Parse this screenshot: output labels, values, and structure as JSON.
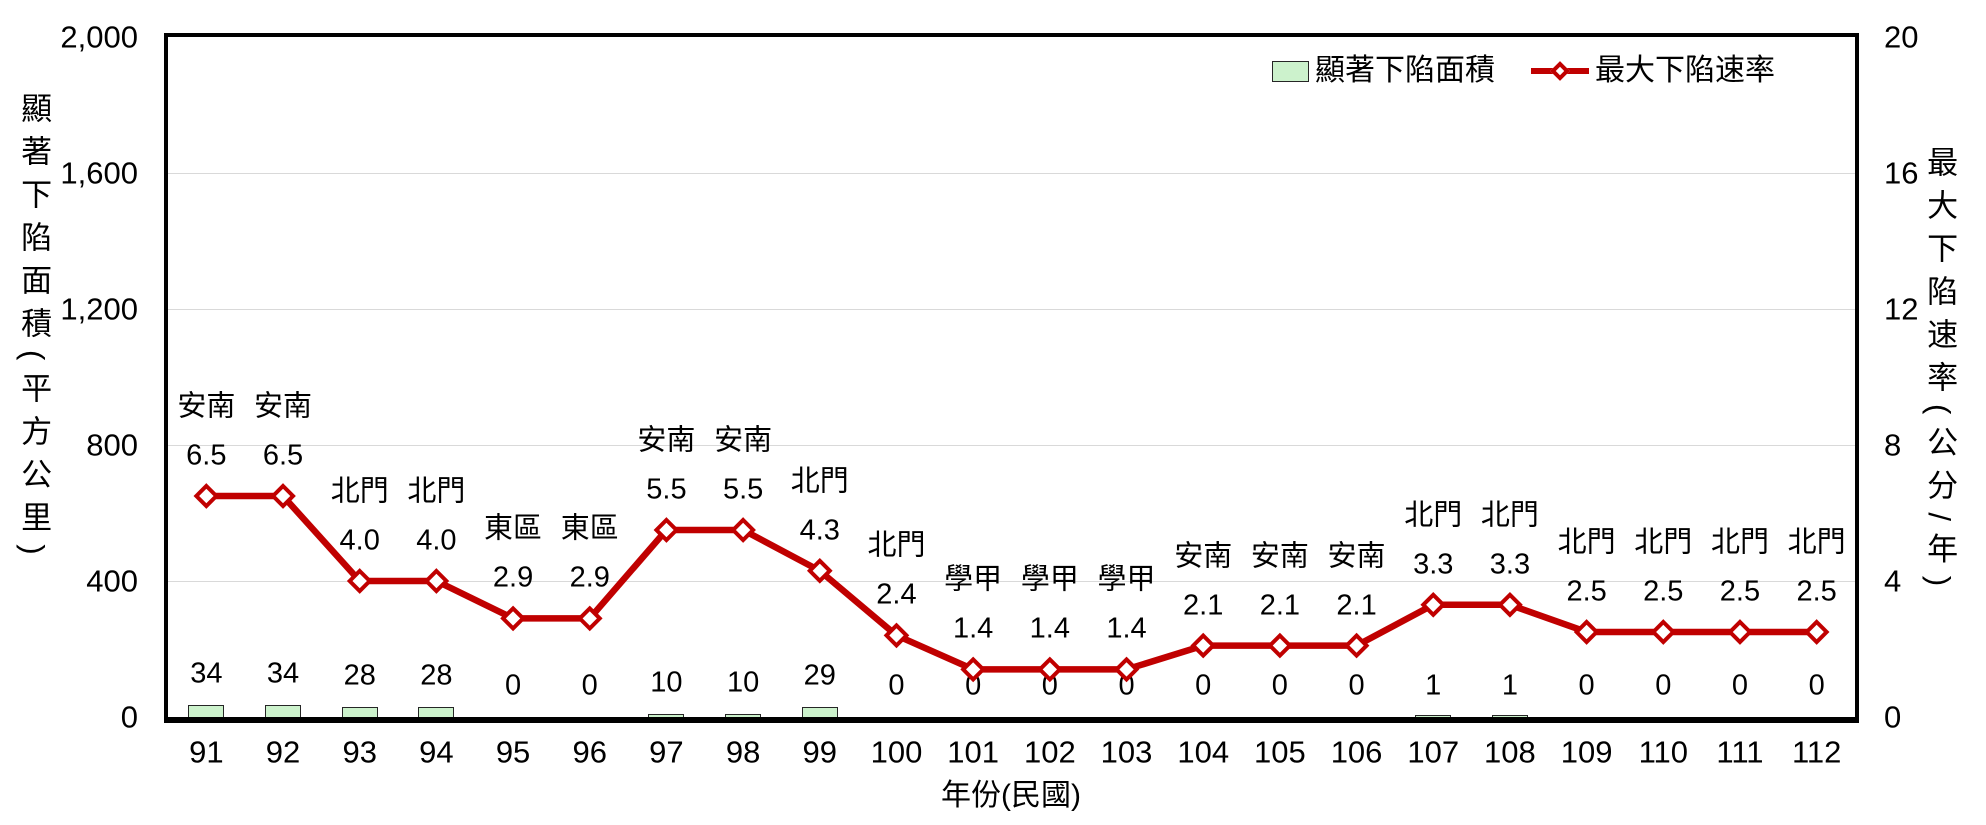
{
  "chart_data": {
    "type": "combo",
    "x_title": "年份(民國)",
    "y_left_title": "顯著下陷面積(平方公里)",
    "y_right_title": "最大下陷速率(公分/年)",
    "y_left_range": [
      0,
      2000
    ],
    "y_left_tick_step": 400,
    "y_left_tick_labels": [
      "0",
      "400",
      "800",
      "1,200",
      "1,600",
      "2,000"
    ],
    "y_right_range": [
      0,
      20
    ],
    "y_right_tick_step": 4,
    "y_right_tick_labels": [
      "0",
      "4",
      "8",
      "12",
      "16",
      "20"
    ],
    "grid": {
      "horizontal": true,
      "color": "#d9d9d9"
    },
    "categories": [
      "91",
      "92",
      "93",
      "94",
      "95",
      "96",
      "97",
      "98",
      "99",
      "100",
      "101",
      "102",
      "103",
      "104",
      "105",
      "106",
      "107",
      "108",
      "109",
      "110",
      "111",
      "112"
    ],
    "series": [
      {
        "name": "顯著下陷面積",
        "type": "bar",
        "axis": "left",
        "fill_color": "#ccf2cc",
        "border_color": "#262626",
        "values": [
          34,
          34,
          28,
          28,
          0,
          0,
          10,
          10,
          29,
          0,
          0,
          0,
          0,
          0,
          0,
          0,
          1,
          1,
          0,
          0,
          0,
          0
        ],
        "value_labels": [
          "34",
          "34",
          "28",
          "28",
          "0",
          "0",
          "10",
          "10",
          "29",
          "0",
          "0",
          "0",
          "0",
          "0",
          "0",
          "0",
          "1",
          "1",
          "0",
          "0",
          "0",
          "0"
        ]
      },
      {
        "name": "最大下陷速率",
        "type": "line",
        "axis": "right",
        "color": "#c00000",
        "marker": "diamond",
        "marker_fill": "#ffffff",
        "values": [
          6.5,
          6.5,
          4.0,
          4.0,
          2.9,
          2.9,
          5.5,
          5.5,
          4.3,
          2.4,
          1.4,
          1.4,
          1.4,
          2.1,
          2.1,
          2.1,
          3.3,
          3.3,
          2.5,
          2.5,
          2.5,
          2.5
        ],
        "value_labels": [
          "6.5",
          "6.5",
          "4.0",
          "4.0",
          "2.9",
          "2.9",
          "5.5",
          "5.5",
          "4.3",
          "2.4",
          "1.4",
          "1.4",
          "1.4",
          "2.1",
          "2.1",
          "2.1",
          "3.3",
          "3.3",
          "2.5",
          "2.5",
          "2.5",
          "2.5"
        ],
        "point_names": [
          "安南",
          "安南",
          "北門",
          "北門",
          "東區",
          "東區",
          "安南",
          "安南",
          "北門",
          "北門",
          "學甲",
          "學甲",
          "學甲",
          "安南",
          "安南",
          "安南",
          "北門",
          "北門",
          "北門",
          "北門",
          "北門",
          "北門"
        ]
      }
    ],
    "legend": {
      "position": "top-right",
      "items": [
        {
          "label": "顯著下陷面積",
          "swatch": "bar"
        },
        {
          "label": "最大下陷速率",
          "swatch": "line-diamond"
        }
      ]
    }
  }
}
